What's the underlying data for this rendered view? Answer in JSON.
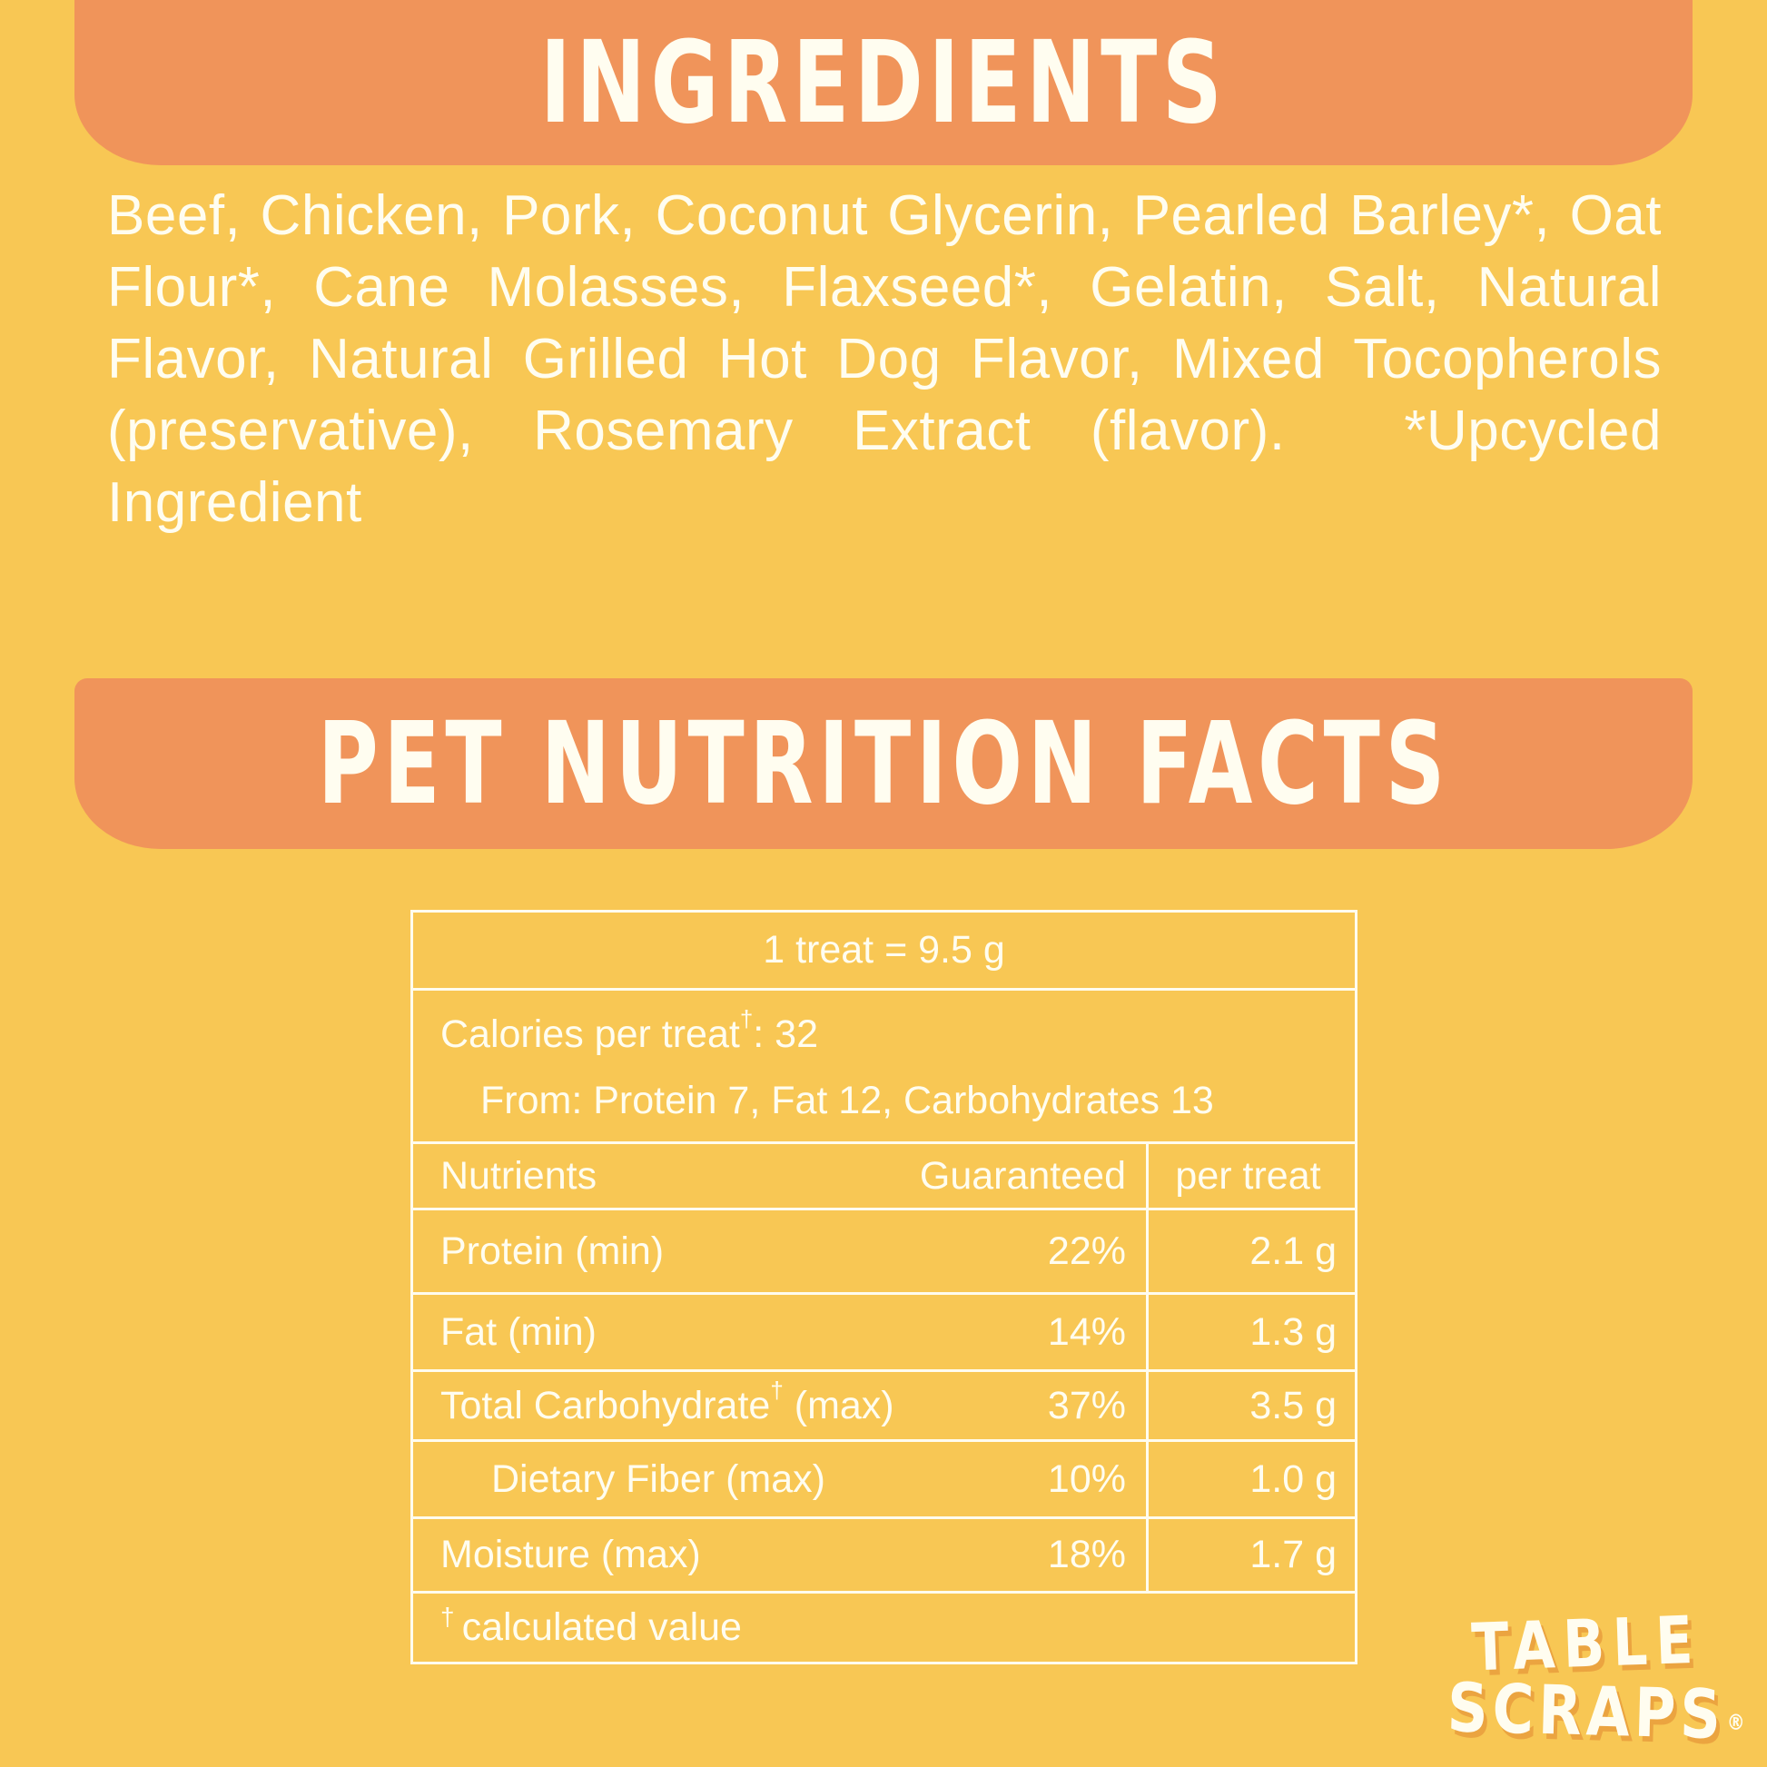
{
  "colors": {
    "background": "#F8C754",
    "banner": "#F0945A",
    "ivory_text": "#FFFDF0",
    "table_border": "#FFFCEF",
    "logo_shadow": "#EBA440"
  },
  "ingredients": {
    "title": "INGREDIENTS",
    "body": "Beef, Chicken, Pork, Coconut Glycerin, Pearled Barley*, Oat Flour*, Cane Molasses, Flaxseed*, Gelatin, Salt, Natural Flavor, Natural Grilled Hot Dog Flavor, Mixed Tocopherols (preservative), Rosemary Extract (flavor).  *Upcycled Ingredient"
  },
  "nutrition": {
    "title": "PET NUTRITION FACTS",
    "serving": "1 treat = 9.5 g",
    "calories": {
      "pre": "Calories per treat",
      "sup": "†",
      "post": ": 32"
    },
    "calories_from": "From: Protein 7, Fat 12, Carbohydrates 13",
    "header": {
      "nutrients": "Nutrients",
      "guaranteed": "Guaranteed",
      "per_treat": "per treat"
    },
    "rows": [
      {
        "name": "Protein (min)",
        "sup": "",
        "name_post": "",
        "guaranteed": "22%",
        "per_treat": "2.1 g"
      },
      {
        "name": "Fat (min)",
        "sup": "",
        "name_post": "",
        "guaranteed": "14%",
        "per_treat": "1.3 g"
      },
      {
        "name": "Total Carbohydrate",
        "sup": "†",
        "name_post": " (max)",
        "guaranteed": "37%",
        "per_treat": "3.5 g"
      },
      {
        "name": "Dietary Fiber (max)",
        "sup": "",
        "name_post": "",
        "guaranteed": "10%",
        "per_treat": "1.0 g"
      },
      {
        "name": "Moisture (max)",
        "sup": "",
        "name_post": "",
        "guaranteed": "18%",
        "per_treat": "1.7 g"
      }
    ],
    "footnote": {
      "sup": "†",
      "text": "calculated value"
    }
  },
  "logo": {
    "line1": "TABLE",
    "line2": "SCRAPS",
    "reg": "®"
  }
}
